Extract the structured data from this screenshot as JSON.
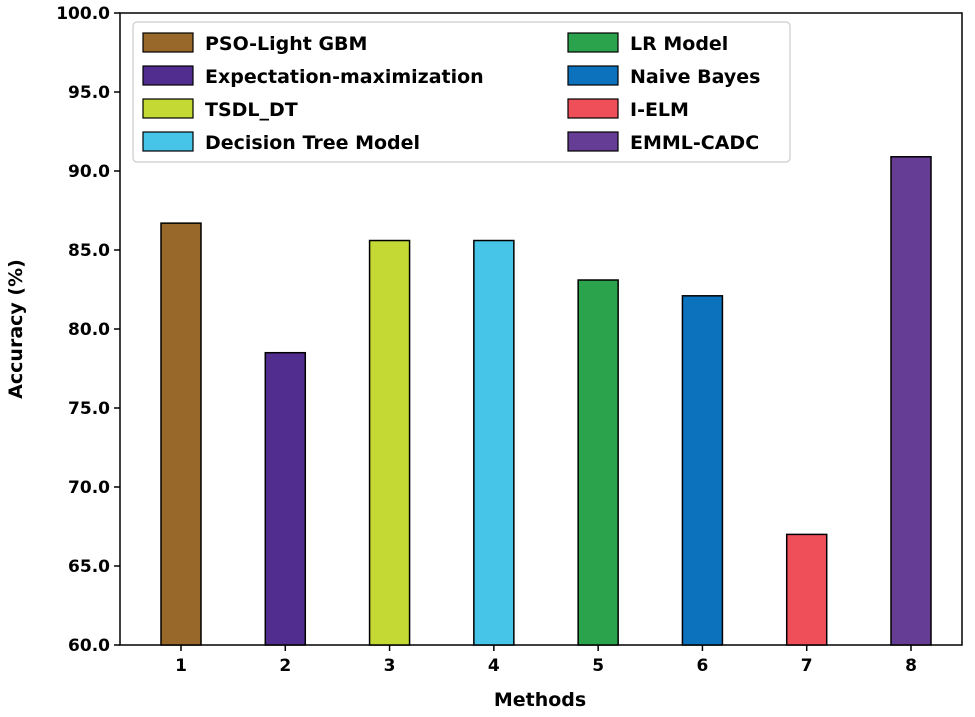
{
  "chart_data": {
    "type": "bar",
    "title": "",
    "xlabel": "Methods",
    "ylabel": "Accuracy (%)",
    "ylim": [
      60,
      100
    ],
    "yticks": [
      "60.0",
      "65.0",
      "70.0",
      "75.0",
      "80.0",
      "85.0",
      "90.0",
      "95.0",
      "100.0"
    ],
    "categories": [
      "1",
      "2",
      "3",
      "4",
      "5",
      "6",
      "7",
      "8"
    ],
    "values": [
      86.7,
      78.5,
      85.6,
      85.6,
      83.1,
      82.1,
      67.0,
      90.9
    ],
    "series_names": [
      "PSO-Light GBM",
      "Expectation-maximization",
      "TSDL_DT",
      "Decision Tree Model",
      "LR Model",
      "Naive Bayes",
      "I-ELM",
      "EMML-CADC"
    ],
    "colors": [
      "#98682a",
      "#522d90",
      "#c5d934",
      "#47c5e8",
      "#2ba24c",
      "#0c72be",
      "#ef4f58",
      "#663d94"
    ],
    "grid": false,
    "legend_placement": "top, two columns"
  }
}
